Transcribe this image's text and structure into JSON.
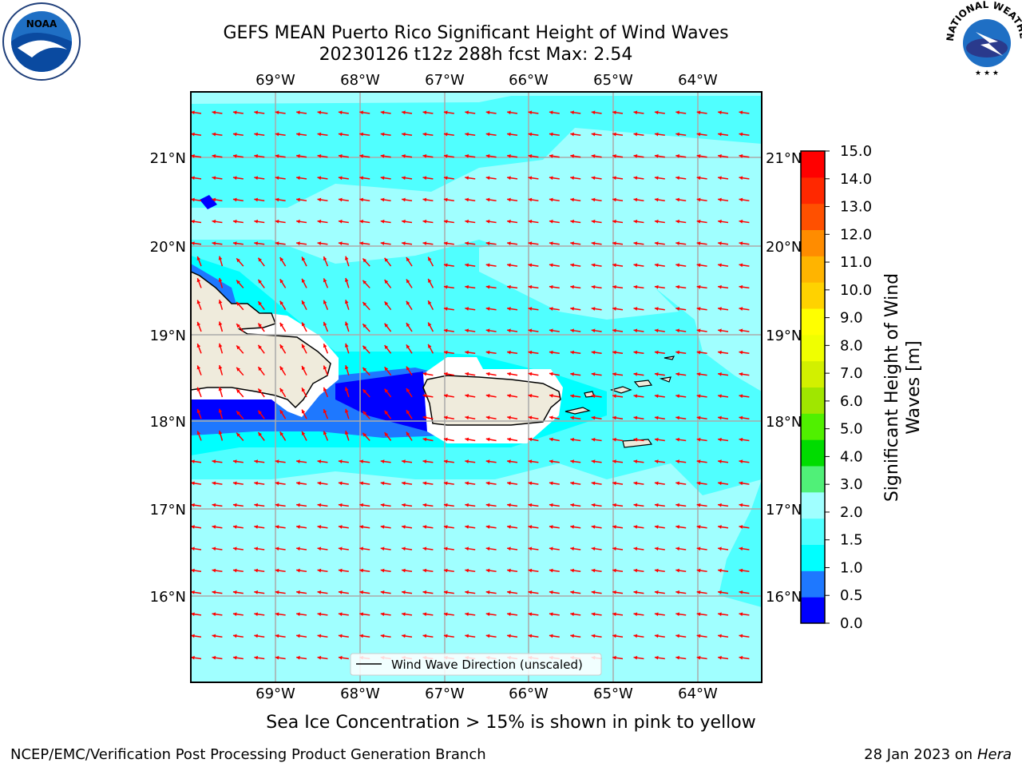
{
  "title": {
    "line1": "GEFS MEAN Puerto Rico Significant Height of Wind Waves",
    "line2": "20230126 t12z 288h fcst   Max: 2.54"
  },
  "map": {
    "lon_labels": [
      "69°W",
      "68°W",
      "67°W",
      "66°W",
      "65°W",
      "64°W"
    ],
    "lat_labels": [
      "21°N",
      "20°N",
      "19°N",
      "18°N",
      "17°N",
      "16°N"
    ],
    "legend_label": "Wind Wave Direction (unscaled)",
    "arrow_color": "#ff0000",
    "land_color": "#efebdc"
  },
  "colorbar": {
    "label_line1": "Significant Height of Wind",
    "label_line2": "Waves [m]",
    "ticks": [
      "0.0",
      "0.5",
      "1.0",
      "1.5",
      "2.0",
      "3.0",
      "4.0",
      "5.0",
      "6.0",
      "7.0",
      "8.0",
      "9.0",
      "10.0",
      "11.0",
      "12.0",
      "13.0",
      "14.0",
      "15.0"
    ],
    "colors": [
      "#0000ff",
      "#1e78ff",
      "#00ffff",
      "#50ffff",
      "#a0ffff",
      "#50f078",
      "#00dc00",
      "#50f000",
      "#a0e600",
      "#d2f000",
      "#f0ff00",
      "#ffff00",
      "#ffd200",
      "#ffb400",
      "#ff8c00",
      "#ff5000",
      "#ff2800",
      "#ff0000"
    ]
  },
  "caption": "Sea Ice Concentration > 15% is shown in pink to yellow",
  "footer": {
    "left": "NCEP/EMC/Verification Post Processing Product Generation Branch",
    "right_prefix": "28 Jan 2023 on ",
    "right_host": "Hera"
  },
  "logos": {
    "noaa_text": "NOAA",
    "nws_text": "NATIONAL WEATHER SERVICE"
  }
}
